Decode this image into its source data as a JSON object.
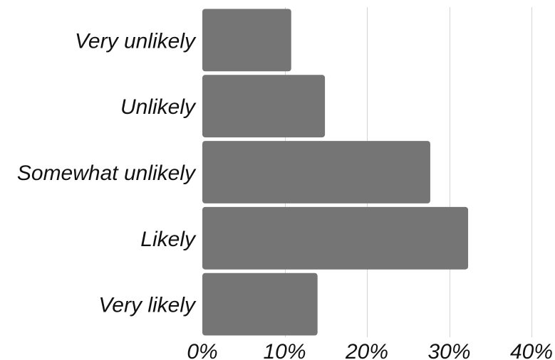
{
  "chart_data": {
    "type": "bar",
    "orientation": "horizontal",
    "categories": [
      "Very unlikely",
      "Unlikely",
      "Somewhat unlikely",
      "Likely",
      "Very likely"
    ],
    "values": [
      10.8,
      14.9,
      27.7,
      32.3,
      14.0
    ],
    "value_unit": "%",
    "xlim": [
      0,
      40
    ],
    "x_ticks": [
      0,
      10,
      20,
      30,
      40
    ],
    "x_tick_labels": [
      "0%",
      "10%",
      "20%",
      "30%",
      "40%"
    ],
    "grid": "vertical",
    "legend": "none",
    "bar_color": "#757575",
    "grid_color": "#d4d4d4",
    "title": "",
    "xlabel": "",
    "ylabel": ""
  }
}
